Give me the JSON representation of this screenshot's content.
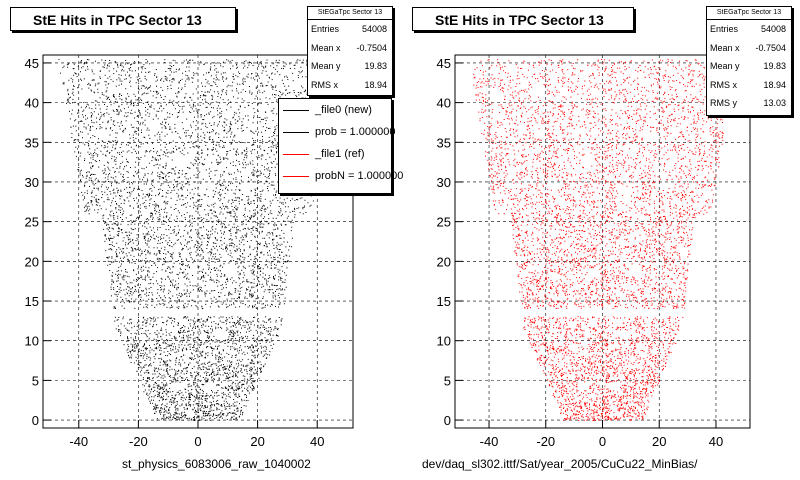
{
  "chart_data": [
    {
      "type": "scatter",
      "title": "StE Hits in TPC Sector 13",
      "caption": "st_physics_6083006_raw_1040002",
      "marker_color": "#000000",
      "xlim": [
        -52,
        52
      ],
      "ylim": [
        -1,
        46
      ],
      "x_ticks": [
        -40,
        -20,
        0,
        20,
        40
      ],
      "y_ticks": [
        0,
        5,
        10,
        15,
        20,
        25,
        30,
        35,
        40,
        45
      ],
      "y_tick_labels": [
        "0",
        "5",
        "10",
        "15",
        "20",
        "25",
        "30",
        "35",
        "40",
        "45"
      ],
      "grid": true,
      "stats": {
        "name": "StEGaTpc Sector 13",
        "rows": [
          {
            "label": "Entries",
            "value": "54008"
          },
          {
            "label": "Mean x",
            "value": "-0.7504"
          },
          {
            "label": "Mean y",
            "value": "19.83"
          },
          {
            "label": "RMS x",
            "value": "18.94"
          }
        ]
      },
      "legend": {
        "placement": "top-right",
        "entries": [
          {
            "label": "_file0 (new)",
            "color": "#000000"
          },
          {
            "label": "prob = 1.000000",
            "color": "#000000"
          },
          {
            "label": "_file1 (ref)",
            "color": "#ff0000"
          },
          {
            "label": "probN = 1.000000",
            "color": "#ff0000"
          }
        ]
      }
    },
    {
      "type": "scatter",
      "title": "StE Hits in TPC Sector 13",
      "caption": "dev/daq_sl302.ittf/Sat/year_2005/CuCu22_MinBias/",
      "marker_color": "#ff0000",
      "xlim": [
        -52,
        52
      ],
      "ylim": [
        -1,
        46
      ],
      "x_ticks": [
        -40,
        -20,
        0,
        20,
        40
      ],
      "y_ticks": [
        0,
        5,
        10,
        15,
        20,
        25,
        30,
        35,
        40,
        45
      ],
      "y_tick_labels": [
        "0",
        "5",
        "10",
        "15",
        "20",
        "25",
        "30",
        "35",
        "40",
        "45"
      ],
      "grid": true,
      "stats": {
        "name": "StEGaTpc Sector 13",
        "rows": [
          {
            "label": "Entries",
            "value": "54008"
          },
          {
            "label": "Mean x",
            "value": "-0.7504"
          },
          {
            "label": "Mean y",
            "value": "19.83"
          },
          {
            "label": "RMS x",
            "value": "18.94"
          },
          {
            "label": "RMS y",
            "value": "13.03"
          }
        ]
      }
    }
  ]
}
